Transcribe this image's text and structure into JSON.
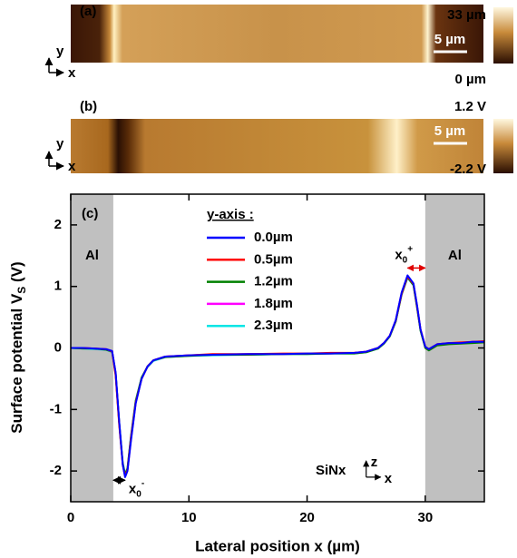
{
  "panel_a": {
    "label": "(a)",
    "scale_max": "33 µm",
    "scale_min": "0 µm",
    "scale_bar": "5 µm",
    "axis_y": "y",
    "axis_x": "x"
  },
  "panel_b": {
    "label": "(b)",
    "scale_max": "1.2 V",
    "scale_min": "-2.2 V",
    "scale_bar": "5 µm",
    "axis_y": "y",
    "axis_x": "x"
  },
  "chart_data": {
    "type": "line",
    "panel_label": "(c)",
    "xlabel": "Lateral position x (µm)",
    "ylabel": {
      "main": "Surface potential V",
      "sub": "S",
      "end": " (V)"
    },
    "xlim": [
      0,
      35
    ],
    "xticks": [
      0,
      10,
      20,
      30
    ],
    "ylim": [
      -2.5,
      2.5
    ],
    "yticks": [
      -2,
      -1,
      0,
      1,
      2
    ],
    "legend": "upper center",
    "legend_title": "y-axis :",
    "regions": [
      {
        "from": 0,
        "to": 3.6,
        "label": "Al",
        "color": "#c0c0c0"
      },
      {
        "from": 30,
        "to": 35,
        "label": "Al",
        "color": "#c0c0c0"
      }
    ],
    "annotations": {
      "material": {
        "text": "SiNx",
        "x": 22,
        "y": -2
      },
      "x0_minus": {
        "base": "x",
        "sub": "0",
        "sup": "-",
        "from": 3.6,
        "to": 4.6,
        "y": -2.15
      },
      "x0_plus": {
        "base": "x",
        "sub": "0",
        "sup": "+",
        "from": 28.5,
        "to": 30,
        "y": 1.3
      },
      "axes_z": "z",
      "axes_x": "x"
    },
    "x": [
      0,
      1,
      2,
      3,
      3.5,
      3.8,
      4.1,
      4.4,
      4.6,
      4.8,
      5.1,
      5.5,
      6,
      6.5,
      7,
      8,
      10,
      12,
      15,
      18,
      20,
      22,
      24,
      25,
      26,
      26.5,
      27,
      27.5,
      28,
      28.5,
      29,
      29.3,
      29.6,
      30,
      30.3,
      31,
      32,
      33,
      34,
      35
    ],
    "series": [
      {
        "name": "0.0µm",
        "color": "#0000ff",
        "values": [
          0,
          0,
          -0.01,
          -0.02,
          -0.05,
          -0.4,
          -1.2,
          -1.9,
          -2.1,
          -2.0,
          -1.5,
          -0.9,
          -0.5,
          -0.3,
          -0.2,
          -0.14,
          -0.12,
          -0.11,
          -0.1,
          -0.1,
          -0.09,
          -0.09,
          -0.08,
          -0.06,
          0,
          0.08,
          0.2,
          0.45,
          0.9,
          1.18,
          1.05,
          0.7,
          0.3,
          0.02,
          -0.02,
          0.06,
          0.08,
          0.08,
          0.1,
          0.1
        ]
      },
      {
        "name": "0.5µm",
        "color": "#ff0000",
        "values": [
          0,
          0,
          -0.01,
          -0.02,
          -0.06,
          -0.45,
          -1.25,
          -1.9,
          -2.08,
          -1.98,
          -1.45,
          -0.88,
          -0.5,
          -0.3,
          -0.2,
          -0.14,
          -0.12,
          -0.1,
          -0.1,
          -0.09,
          -0.09,
          -0.08,
          -0.08,
          -0.06,
          0,
          0.08,
          0.2,
          0.44,
          0.88,
          1.16,
          1.04,
          0.68,
          0.3,
          0.02,
          -0.02,
          0.06,
          0.08,
          0.09,
          0.1,
          0.11
        ]
      },
      {
        "name": "1.2µm",
        "color": "#008000",
        "values": [
          0,
          -0.01,
          -0.01,
          -0.03,
          -0.06,
          -0.42,
          -1.22,
          -1.88,
          -2.06,
          -1.96,
          -1.44,
          -0.86,
          -0.48,
          -0.3,
          -0.2,
          -0.15,
          -0.13,
          -0.11,
          -0.11,
          -0.1,
          -0.1,
          -0.09,
          -0.09,
          -0.07,
          -0.01,
          0.07,
          0.19,
          0.43,
          0.87,
          1.15,
          1.02,
          0.66,
          0.28,
          0,
          -0.04,
          0.04,
          0.06,
          0.07,
          0.08,
          0.09
        ]
      },
      {
        "name": "1.8µm",
        "color": "#ff00ff",
        "values": [
          0,
          0,
          -0.01,
          -0.02,
          -0.05,
          -0.41,
          -1.21,
          -1.89,
          -2.09,
          -1.99,
          -1.48,
          -0.89,
          -0.49,
          -0.3,
          -0.2,
          -0.14,
          -0.12,
          -0.11,
          -0.1,
          -0.1,
          -0.09,
          -0.09,
          -0.08,
          -0.06,
          0,
          0.08,
          0.2,
          0.45,
          0.89,
          1.17,
          1.04,
          0.69,
          0.3,
          0.02,
          -0.02,
          0.06,
          0.08,
          0.08,
          0.1,
          0.1
        ]
      },
      {
        "name": "2.3µm",
        "color": "#00e5e5",
        "values": [
          0,
          -0.01,
          -0.02,
          -0.03,
          -0.07,
          -0.43,
          -1.2,
          -1.86,
          -2.05,
          -1.95,
          -1.42,
          -0.85,
          -0.48,
          -0.31,
          -0.21,
          -0.15,
          -0.13,
          -0.12,
          -0.11,
          -0.1,
          -0.1,
          -0.09,
          -0.09,
          -0.07,
          -0.01,
          0.07,
          0.19,
          0.43,
          0.87,
          1.14,
          1.02,
          0.67,
          0.28,
          0.01,
          -0.03,
          0.05,
          0.07,
          0.08,
          0.09,
          0.1
        ]
      }
    ]
  }
}
